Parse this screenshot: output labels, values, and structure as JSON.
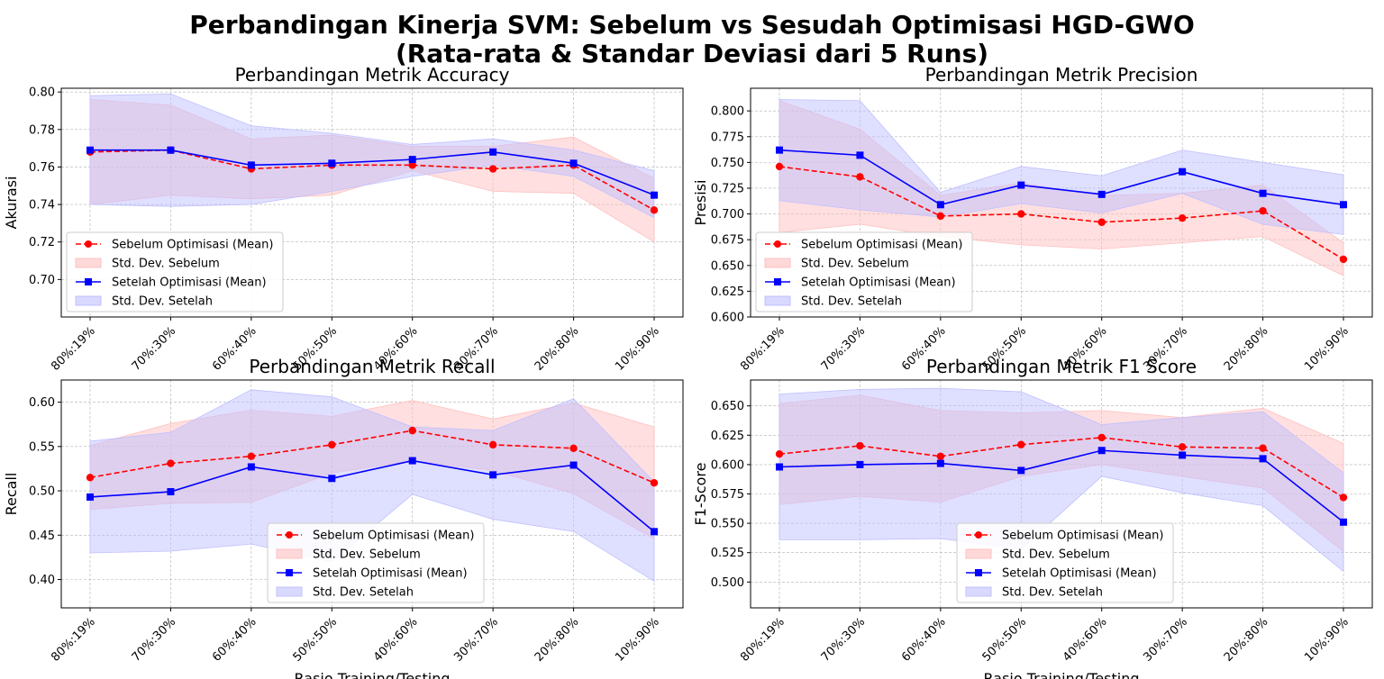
{
  "figure": {
    "title_line1": "Perbandingan Kinerja SVM: Sebelum vs Sesudah Optimisasi HGD-GWO",
    "title_line2": "(Rata-rata & Standar Deviasi dari 5 Runs)"
  },
  "colors": {
    "before": "#ff0000",
    "after": "#0000ff",
    "before_fill": "#ffc0c0",
    "after_fill": "#c0c0ff",
    "grid": "#b0b0b0"
  },
  "chart_data": [
    {
      "type": "line",
      "title": "Perbandingan Metrik Accuracy",
      "xlabel": "",
      "ylabel": "Akurasi",
      "categories": [
        "80%:19%",
        "70%:30%",
        "60%:40%",
        "50%:50%",
        "40%:60%",
        "30%:70%",
        "20%:80%",
        "10%:90%"
      ],
      "ylim": [
        0.68,
        0.802
      ],
      "yticks": [
        0.7,
        0.72,
        0.74,
        0.76,
        0.78,
        0.8
      ],
      "grid": true,
      "legend_loc": "lower-left",
      "series": [
        {
          "name": "Sebelum Optimisasi (Mean)",
          "values": [
            0.768,
            0.769,
            0.759,
            0.761,
            0.761,
            0.759,
            0.761,
            0.737
          ],
          "std_lower": [
            0.74,
            0.745,
            0.743,
            0.745,
            0.758,
            0.747,
            0.746,
            0.72
          ],
          "std_upper": [
            0.796,
            0.793,
            0.775,
            0.777,
            0.771,
            0.771,
            0.776,
            0.754
          ]
        },
        {
          "name": "Setelah Optimisasi (Mean)",
          "values": [
            0.769,
            0.769,
            0.761,
            0.762,
            0.764,
            0.768,
            0.762,
            0.745
          ],
          "std_lower": [
            0.74,
            0.739,
            0.74,
            0.747,
            0.755,
            0.761,
            0.755,
            0.733
          ],
          "std_upper": [
            0.798,
            0.799,
            0.782,
            0.778,
            0.772,
            0.775,
            0.769,
            0.758
          ]
        }
      ],
      "legend": [
        "Sebelum Optimisasi (Mean)",
        "Std. Dev. Sebelum",
        "Setelah Optimisasi (Mean)",
        "Std. Dev. Setelah"
      ]
    },
    {
      "type": "line",
      "title": "Perbandingan Metrik Precision",
      "xlabel": "",
      "ylabel": "Presisi",
      "categories": [
        "80%:19%",
        "70%:30%",
        "60%:40%",
        "50%:50%",
        "40%:60%",
        "30%:70%",
        "20%:80%",
        "10%:90%"
      ],
      "ylim": [
        0.6,
        0.822
      ],
      "yticks": [
        0.6,
        0.625,
        0.65,
        0.675,
        0.7,
        0.725,
        0.75,
        0.775,
        0.8
      ],
      "grid": true,
      "legend_loc": "lower-left",
      "series": [
        {
          "name": "Sebelum Optimisasi (Mean)",
          "values": [
            0.746,
            0.736,
            0.698,
            0.7,
            0.692,
            0.696,
            0.703,
            0.656
          ],
          "std_lower": [
            0.682,
            0.69,
            0.678,
            0.67,
            0.666,
            0.672,
            0.678,
            0.64
          ],
          "std_upper": [
            0.81,
            0.782,
            0.718,
            0.73,
            0.718,
            0.72,
            0.728,
            0.672
          ]
        },
        {
          "name": "Setelah Optimisasi (Mean)",
          "values": [
            0.762,
            0.757,
            0.709,
            0.728,
            0.719,
            0.741,
            0.72,
            0.709
          ],
          "std_lower": [
            0.713,
            0.704,
            0.697,
            0.71,
            0.701,
            0.72,
            0.69,
            0.68
          ],
          "std_upper": [
            0.811,
            0.81,
            0.721,
            0.746,
            0.737,
            0.762,
            0.75,
            0.738
          ]
        }
      ],
      "legend": [
        "Sebelum Optimisasi (Mean)",
        "Std. Dev. Sebelum",
        "Setelah Optimisasi (Mean)",
        "Std. Dev. Setelah"
      ]
    },
    {
      "type": "line",
      "title": "Perbandingan Metrik Recall",
      "xlabel": "Rasio Training/Testing",
      "ylabel": "Recall",
      "categories": [
        "80%:19%",
        "70%:30%",
        "60%:40%",
        "50%:50%",
        "40%:60%",
        "30%:70%",
        "20%:80%",
        "10%:90%"
      ],
      "ylim": [
        0.368,
        0.625
      ],
      "yticks": [
        0.4,
        0.45,
        0.5,
        0.55,
        0.6
      ],
      "grid": true,
      "legend_loc": "lower-center",
      "series": [
        {
          "name": "Sebelum Optimisasi (Mean)",
          "values": [
            0.515,
            0.531,
            0.539,
            0.552,
            0.568,
            0.552,
            0.548,
            0.509
          ],
          "std_lower": [
            0.479,
            0.486,
            0.487,
            0.52,
            0.534,
            0.523,
            0.497,
            0.446
          ],
          "std_upper": [
            0.551,
            0.576,
            0.591,
            0.584,
            0.602,
            0.581,
            0.599,
            0.572
          ]
        },
        {
          "name": "Setelah Optimisasi (Mean)",
          "values": [
            0.493,
            0.499,
            0.527,
            0.514,
            0.534,
            0.518,
            0.529,
            0.454
          ],
          "std_lower": [
            0.43,
            0.432,
            0.44,
            0.42,
            0.496,
            0.468,
            0.454,
            0.398
          ],
          "std_upper": [
            0.556,
            0.566,
            0.614,
            0.606,
            0.572,
            0.568,
            0.604,
            0.51
          ]
        }
      ],
      "legend": [
        "Sebelum Optimisasi (Mean)",
        "Std. Dev. Sebelum",
        "Setelah Optimisasi (Mean)",
        "Std. Dev. Setelah"
      ]
    },
    {
      "type": "line",
      "title": "Perbandingan Metrik F1 Score",
      "xlabel": "Rasio Training/Testing",
      "ylabel": "F1-Score",
      "categories": [
        "80%:19%",
        "70%:30%",
        "60%:40%",
        "50%:50%",
        "40%:60%",
        "30%:70%",
        "20%:80%",
        "10%:90%"
      ],
      "ylim": [
        0.478,
        0.672
      ],
      "yticks": [
        0.5,
        0.525,
        0.55,
        0.575,
        0.6,
        0.625,
        0.65
      ],
      "grid": true,
      "legend_loc": "lower-center",
      "series": [
        {
          "name": "Sebelum Optimisasi (Mean)",
          "values": [
            0.609,
            0.616,
            0.607,
            0.617,
            0.623,
            0.615,
            0.614,
            0.572
          ],
          "std_lower": [
            0.566,
            0.573,
            0.568,
            0.59,
            0.6,
            0.59,
            0.58,
            0.526
          ],
          "std_upper": [
            0.652,
            0.659,
            0.646,
            0.644,
            0.646,
            0.64,
            0.648,
            0.618
          ]
        },
        {
          "name": "Setelah Optimisasi (Mean)",
          "values": [
            0.598,
            0.6,
            0.601,
            0.595,
            0.612,
            0.608,
            0.605,
            0.551
          ],
          "std_lower": [
            0.536,
            0.536,
            0.537,
            0.528,
            0.59,
            0.576,
            0.565,
            0.509
          ],
          "std_upper": [
            0.66,
            0.664,
            0.665,
            0.662,
            0.634,
            0.64,
            0.645,
            0.593
          ]
        }
      ],
      "legend": [
        "Sebelum Optimisasi (Mean)",
        "Std. Dev. Sebelum",
        "Setelah Optimisasi (Mean)",
        "Std. Dev. Setelah"
      ]
    }
  ]
}
